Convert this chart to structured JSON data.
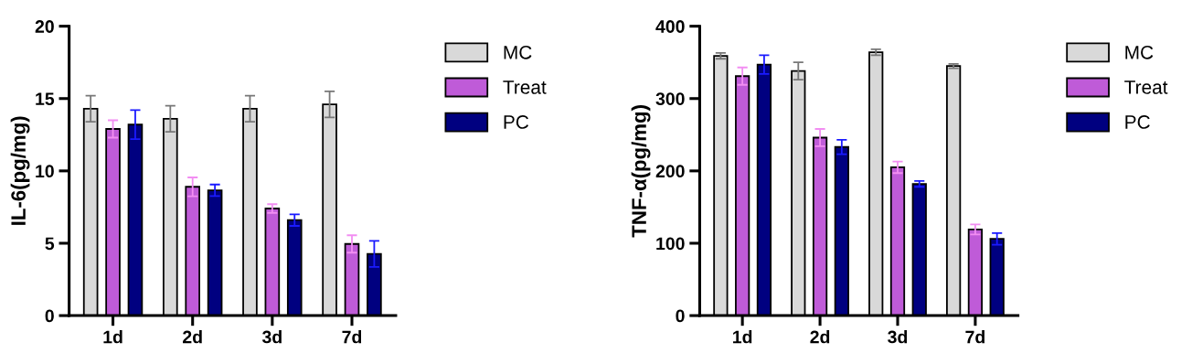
{
  "chart_data": [
    {
      "type": "bar",
      "ylabel": "IL-6(pg/mg)",
      "categories": [
        "1d",
        "2d",
        "3d",
        "7d"
      ],
      "ylim": [
        0,
        20
      ],
      "yticks": [
        0,
        5,
        10,
        15,
        20
      ],
      "grid": false,
      "legend": "right",
      "series": [
        {
          "name": "MC",
          "color": "#d9d9d9",
          "values": [
            14.3,
            13.6,
            14.3,
            14.6
          ],
          "errors": [
            0.9,
            0.9,
            0.9,
            0.9
          ]
        },
        {
          "name": "Treat",
          "color": "#bf5bd8",
          "values": [
            12.9,
            8.9,
            7.4,
            4.95
          ],
          "errors": [
            0.6,
            0.65,
            0.3,
            0.6
          ]
        },
        {
          "name": "PC",
          "color": "#000080",
          "values": [
            13.2,
            8.66,
            6.6,
            4.26
          ],
          "errors": [
            1.0,
            0.4,
            0.4,
            0.9
          ]
        }
      ]
    },
    {
      "type": "bar",
      "ylabel": "TNF-α(pg/mg)",
      "categories": [
        "1d",
        "2d",
        "3d",
        "7d"
      ],
      "ylim": [
        0,
        400
      ],
      "yticks": [
        0,
        100,
        200,
        300,
        400
      ],
      "grid": false,
      "legend": "right",
      "series": [
        {
          "name": "MC",
          "color": "#d9d9d9",
          "values": [
            359,
            338,
            364,
            345
          ],
          "errors": [
            4,
            12,
            4,
            3
          ]
        },
        {
          "name": "Treat",
          "color": "#bf5bd8",
          "values": [
            331,
            246,
            205,
            119
          ],
          "errors": [
            12,
            12,
            8,
            7
          ]
        },
        {
          "name": "PC",
          "color": "#000080",
          "values": [
            347,
            233,
            182,
            106
          ],
          "errors": [
            13,
            10,
            4,
            8
          ]
        }
      ]
    }
  ]
}
